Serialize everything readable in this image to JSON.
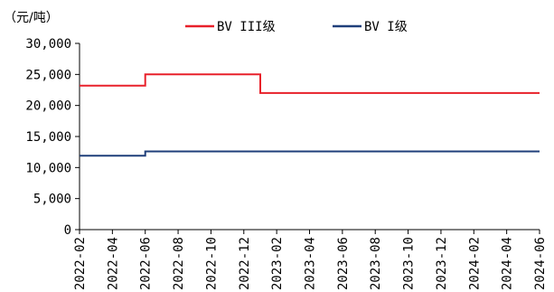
{
  "chart_data": {
    "type": "line",
    "step": true,
    "ylabel": "（元/吨）",
    "ylim": [
      0,
      30000
    ],
    "yticks": [
      0,
      5000,
      10000,
      15000,
      20000,
      25000,
      30000
    ],
    "ytick_labels": [
      "0",
      "5,000",
      "10,000",
      "15,000",
      "20,000",
      "25,000",
      "30,000"
    ],
    "xlim": [
      "2022-02",
      "2024-06"
    ],
    "xticks": [
      "2022-02",
      "2022-04",
      "2022-06",
      "2022-08",
      "2022-10",
      "2022-12",
      "2023-02",
      "2023-04",
      "2023-06",
      "2023-08",
      "2023-10",
      "2023-12",
      "2024-02",
      "2024-04",
      "2024-06"
    ],
    "grid": false,
    "legend": "top",
    "series": [
      {
        "name": "BV III级",
        "color": "#e8202a",
        "points": [
          {
            "x": "2022-02",
            "y": 23200
          },
          {
            "x": "2022-06",
            "y": 25000
          },
          {
            "x": "2023-01",
            "y": 22000
          },
          {
            "x": "2024-06",
            "y": 22000
          }
        ]
      },
      {
        "name": "BV I级",
        "color": "#1f3f7a",
        "points": [
          {
            "x": "2022-02",
            "y": 11900
          },
          {
            "x": "2022-06",
            "y": 12600
          },
          {
            "x": "2024-06",
            "y": 12600
          }
        ]
      }
    ]
  }
}
